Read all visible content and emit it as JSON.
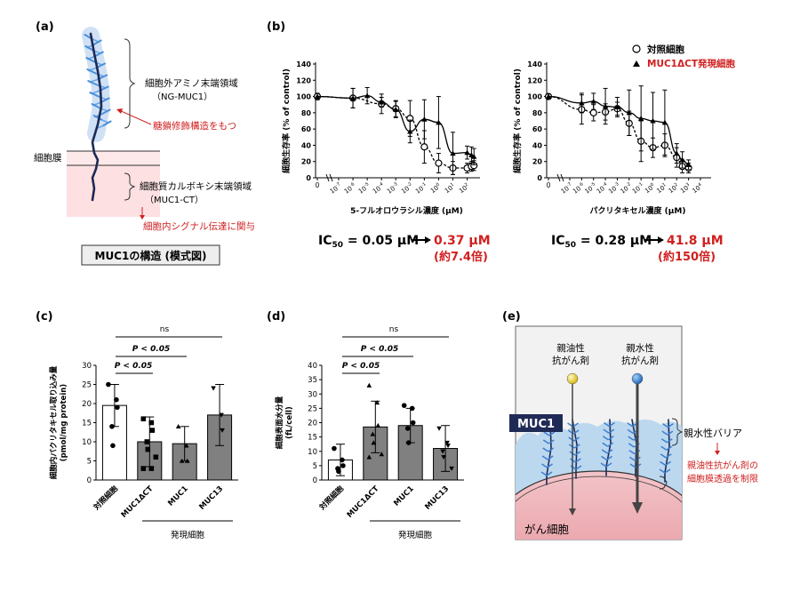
{
  "panels": {
    "a": {
      "label": "(a)",
      "extracellular_label": "細胞外アミノ末端領域",
      "extracellular_sub": "（NG-MUC1）",
      "glyco_note": "糖鎖修飾構造をもつ",
      "membrane_label": "細胞膜",
      "cytoplasmic_label": "細胞質カルボキシ末端領域",
      "cytoplasmic_sub": "（MUC1-CT）",
      "signal_note": "細胞内シグナル伝達に関与",
      "caption": "MUC1の構造 (模式図)"
    },
    "b": {
      "label": "(b)",
      "legend_control": "対照細胞",
      "legend_expr": "MUC1ΔCT発現細胞",
      "ic50_left_base": "IC",
      "ic50_left_sub": "50",
      "ic50_left_value": " = 0.05 µM",
      "ic50_left_new": "0.37 µM",
      "ic50_left_fold": "(約7.4倍)",
      "ic50_right_base": "IC",
      "ic50_right_sub": "50",
      "ic50_right_value": " = 0.28 µM",
      "ic50_right_new": "41.8 µM",
      "ic50_right_fold": "(約150倍)"
    },
    "c": {
      "label": "(c)",
      "ns": "ns",
      "p1": "P < 0.05",
      "p2": "P < 0.05",
      "group_label": "発現細胞"
    },
    "d": {
      "label": "(d)",
      "ns": "ns",
      "p1": "P < 0.05",
      "p2": "P < 0.05",
      "group_label": "発現細胞"
    },
    "e": {
      "label": "(e)",
      "lipo_label_1": "親油性",
      "lipo_label_2": "抗がん剤",
      "hydro_label_1": "親水性",
      "hydro_label_2": "抗がん剤",
      "muc1": "MUC1",
      "barrier": "親水性バリア",
      "note_1": "親油性抗がん剤の",
      "note_2": "細胞膜透過を制限",
      "cancer": "がん細胞"
    }
  },
  "chart_data": [
    {
      "id": "b-left",
      "type": "scatter",
      "xlabel": "5-フルオロウラシル濃度 (µM)",
      "ylabel": "細胞生存率 (% of control)",
      "x_scale": "log",
      "x_zero_label": "0",
      "x_ticks": [
        "10",
        "10",
        "10",
        "10",
        "10",
        "10",
        "10",
        "10",
        "10",
        "10"
      ],
      "x_tick_exps": [
        "-7",
        "-6",
        "-5",
        "-4",
        "-3",
        "-2",
        "-1",
        "0",
        "1",
        "2"
      ],
      "yticks": [
        "0",
        "20",
        "40",
        "60",
        "80",
        "100",
        "120",
        "140"
      ],
      "ylim": [
        0,
        140
      ],
      "series": [
        {
          "name": "対照細胞",
          "marker": "circle-open",
          "x": [
            0,
            1e-06,
            0.0001,
            0.001,
            0.01,
            0.1,
            1,
            10,
            100,
            200,
            300
          ],
          "y": [
            100,
            98,
            91,
            85,
            73,
            38,
            18,
            12,
            12,
            14,
            15
          ],
          "err": [
            4,
            12,
            12,
            10,
            22,
            20,
            12,
            8,
            6,
            6,
            6
          ]
        },
        {
          "name": "MUC1ΔCT発現細胞",
          "marker": "triangle",
          "x": [
            0,
            1e-06,
            1e-05,
            0.0001,
            0.001,
            0.01,
            0.1,
            1,
            10,
            100,
            200,
            300
          ],
          "y": [
            100,
            98,
            101,
            93,
            84,
            57,
            72,
            68,
            30,
            31,
            28,
            26
          ],
          "err": [
            4,
            12,
            10,
            6,
            10,
            14,
            24,
            32,
            26,
            8,
            10,
            10
          ]
        }
      ]
    },
    {
      "id": "b-right",
      "type": "scatter",
      "xlabel": "パクリタキセル濃度 (µM)",
      "ylabel": "細胞生存率 (% of control)",
      "x_scale": "log",
      "x_zero_label": "0",
      "x_ticks": [
        "10",
        "10",
        "10",
        "10",
        "10",
        "10",
        "10",
        "10",
        "10",
        "10",
        "10",
        "10"
      ],
      "x_tick_exps": [
        "-7",
        "-6",
        "-5",
        "-4",
        "-3",
        "-2",
        "-1",
        "0",
        "1",
        "2",
        "3",
        "4"
      ],
      "yticks": [
        "0",
        "20",
        "40",
        "60",
        "80",
        "100",
        "120",
        "140"
      ],
      "ylim": [
        0,
        140
      ],
      "series": [
        {
          "name": "対照細胞",
          "marker": "circle-open",
          "x": [
            0,
            1e-06,
            1e-05,
            0.0001,
            0.001,
            0.01,
            0.1,
            1,
            10,
            100,
            300,
            1000
          ],
          "y": [
            100,
            84,
            80,
            81,
            85,
            67,
            45,
            37,
            40,
            25,
            14,
            12
          ],
          "err": [
            3,
            18,
            10,
            10,
            8,
            15,
            25,
            12,
            14,
            12,
            8,
            6
          ]
        },
        {
          "name": "MUC1ΔCT発現細胞",
          "marker": "triangle",
          "x": [
            0,
            1e-06,
            1e-05,
            0.0001,
            0.001,
            0.01,
            0.1,
            1,
            10,
            100,
            300,
            1000
          ],
          "y": [
            100,
            92,
            94,
            88,
            87,
            80,
            73,
            70,
            68,
            30,
            22,
            16
          ],
          "err": [
            3,
            12,
            10,
            22,
            12,
            28,
            40,
            35,
            40,
            12,
            10,
            6
          ]
        }
      ]
    },
    {
      "id": "c",
      "type": "bar",
      "ylabel": "細胞内パクリタキセル取り込み量 (pmol/mg protein)",
      "categories": [
        "対照細胞",
        "MUC1ΔCT",
        "MUC1",
        "MUC13"
      ],
      "values": [
        19.5,
        10,
        9.5,
        17
      ],
      "err": [
        5.5,
        6.5,
        4.5,
        8
      ],
      "colors": [
        "#ffffff",
        "#808080",
        "#808080",
        "#808080"
      ],
      "markers": [
        "circle",
        "square",
        "triangle",
        "triangle-down"
      ],
      "points": [
        [
          25,
          21,
          19,
          14,
          9
        ],
        [
          16,
          15,
          13,
          10,
          8,
          6,
          3,
          3
        ],
        [
          14,
          9,
          5,
          5
        ],
        [
          24,
          17,
          13
        ]
      ],
      "yticks": [
        "0",
        "5",
        "10",
        "15",
        "20",
        "25",
        "30"
      ],
      "ylim": [
        0,
        30
      ]
    },
    {
      "id": "d",
      "type": "bar",
      "ylabel": "細胞表面水分量 (fL/cell)",
      "categories": [
        "対照細胞",
        "MUC1ΔCT",
        "MUC1",
        "MUC13"
      ],
      "values": [
        7,
        18.5,
        19,
        11
      ],
      "err": [
        5.5,
        9,
        6,
        8
      ],
      "colors": [
        "#ffffff",
        "#808080",
        "#808080",
        "#808080"
      ],
      "markers": [
        "circle",
        "triangle",
        "circle",
        "triangle-down"
      ],
      "points": [
        [
          11,
          7,
          5,
          4,
          3
        ],
        [
          33,
          27,
          19,
          16,
          13,
          9,
          8
        ],
        [
          26,
          25,
          20,
          18,
          13
        ],
        [
          18,
          13,
          12,
          10,
          8,
          4
        ]
      ],
      "yticks": [
        "0",
        "5",
        "10",
        "15",
        "20",
        "25",
        "30",
        "35",
        "40"
      ],
      "ylim": [
        0,
        40
      ]
    }
  ]
}
